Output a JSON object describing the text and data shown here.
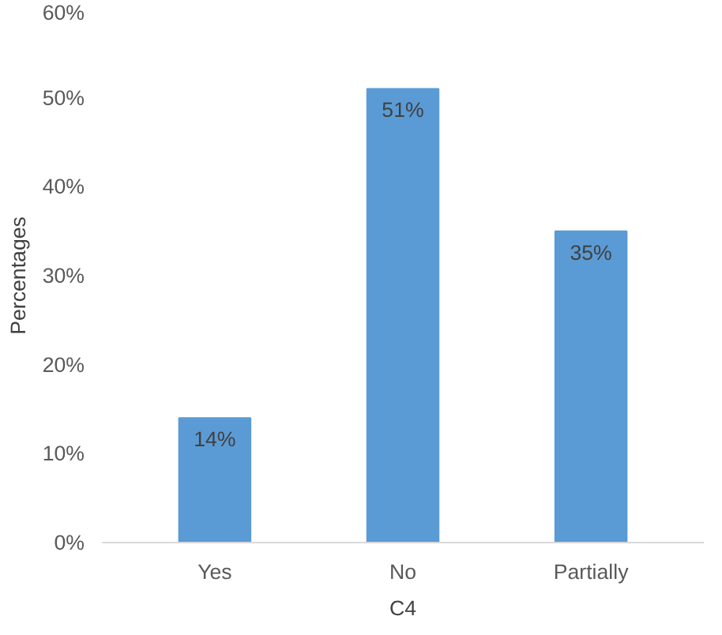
{
  "chart_data": {
    "type": "bar",
    "xlabel": "C4",
    "ylabel": "Percentages",
    "categories": [
      "Yes",
      "No",
      "Partially"
    ],
    "values": [
      14,
      51,
      35
    ],
    "value_labels": [
      "14%",
      "51%",
      "35%"
    ],
    "color": "#5b9bd5",
    "ylim": [
      0,
      60
    ],
    "yticks": [
      {
        "value": 0,
        "label": "0%"
      },
      {
        "value": 10,
        "label": "10%"
      },
      {
        "value": 20,
        "label": "20%"
      },
      {
        "value": 30,
        "label": "30%"
      },
      {
        "value": 40,
        "label": "40%"
      },
      {
        "value": 50,
        "label": "50%"
      },
      {
        "value": 60,
        "label": "60%"
      }
    ],
    "grid": false
  }
}
